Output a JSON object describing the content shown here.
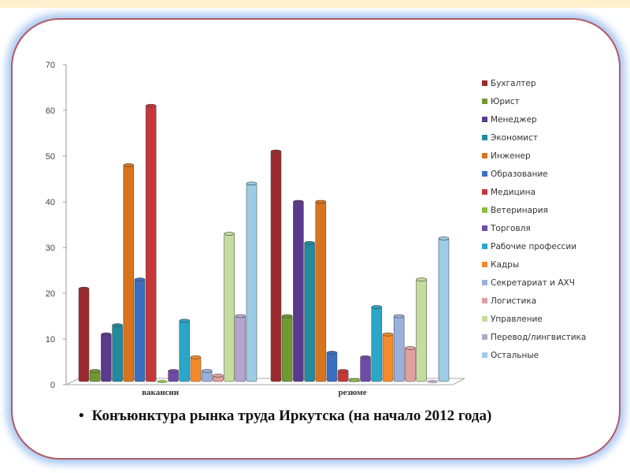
{
  "chart_data": {
    "type": "bar",
    "title": "",
    "xlabel": "",
    "ylabel": "",
    "ylim": [
      0,
      70
    ],
    "yticks": [
      "0",
      "10",
      "20",
      "30",
      "40",
      "50",
      "60",
      "70"
    ],
    "categories": [
      "вакансии",
      "резюме"
    ],
    "legend_position": "right",
    "series": [
      {
        "name": "Бухгалтер",
        "color": "#9b2a2e",
        "values": [
          21,
          51
        ]
      },
      {
        "name": "Юрист",
        "color": "#6f9a2e",
        "values": [
          3,
          15
        ]
      },
      {
        "name": "Менеджер",
        "color": "#5a3a8a",
        "values": [
          11,
          40
        ]
      },
      {
        "name": "Экономист",
        "color": "#1f8aa0",
        "values": [
          13,
          31
        ]
      },
      {
        "name": "Инженер",
        "color": "#d9741e",
        "values": [
          48,
          40
        ]
      },
      {
        "name": "Образование",
        "color": "#3a6fc0",
        "values": [
          23,
          7
        ]
      },
      {
        "name": "Медицина",
        "color": "#c8363a",
        "values": [
          61,
          3
        ]
      },
      {
        "name": "Ветеринария",
        "color": "#8cc040",
        "values": [
          0,
          1
        ]
      },
      {
        "name": "Торговля",
        "color": "#6f4aa8",
        "values": [
          3,
          6
        ]
      },
      {
        "name": "Рабочие профессии",
        "color": "#2aa6c8",
        "values": [
          14,
          17
        ]
      },
      {
        "name": "Кадры",
        "color": "#f58a2a",
        "values": [
          6,
          11
        ]
      },
      {
        "name": "Секретариат и АХЧ",
        "color": "#9ab0dc",
        "values": [
          3,
          15
        ]
      },
      {
        "name": "Логистика",
        "color": "#e0a0a2",
        "values": [
          2,
          8
        ]
      },
      {
        "name": "Управление",
        "color": "#c4dc9c",
        "values": [
          33,
          23
        ]
      },
      {
        "name": "Перевод/лингвистика",
        "color": "#b4a6d0",
        "values": [
          15,
          0
        ]
      },
      {
        "name": "Остальные",
        "color": "#9ccce6",
        "values": [
          44,
          32
        ]
      }
    ]
  },
  "caption": {
    "bullet": "•",
    "text": "Конъюнктура рынка труда Иркутска (на начало 2012 года)"
  }
}
